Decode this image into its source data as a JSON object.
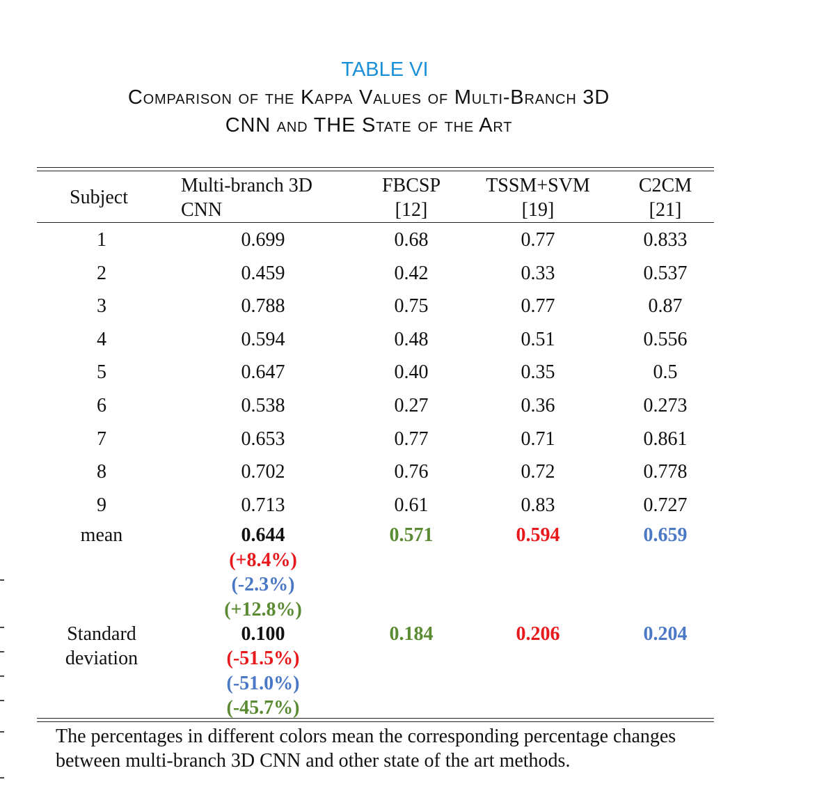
{
  "table": {
    "label": "TABLE VI",
    "caption_line1": "Comparison of the Kappa Values of Multi-Branch 3D",
    "caption_line2": "CNN and THE State of the Art",
    "headers": {
      "subject": "Subject",
      "col1_line1": "Multi-branch 3D",
      "col1_line2": "CNN",
      "col2_line1": "FBCSP",
      "col2_line2": "[12]",
      "col3_line1": "TSSM+SVM",
      "col3_line2": "[19]",
      "col4_line1": "C2CM",
      "col4_line2": "[21]"
    },
    "rows": [
      {
        "subject": "1",
        "v1": "0.699",
        "v2": "0.68",
        "v3": "0.77",
        "v4": "0.833"
      },
      {
        "subject": "2",
        "v1": "0.459",
        "v2": "0.42",
        "v3": "0.33",
        "v4": "0.537"
      },
      {
        "subject": "3",
        "v1": "0.788",
        "v2": "0.75",
        "v3": "0.77",
        "v4": "0.87"
      },
      {
        "subject": "4",
        "v1": "0.594",
        "v2": "0.48",
        "v3": "0.51",
        "v4": "0.556"
      },
      {
        "subject": "5",
        "v1": "0.647",
        "v2": "0.40",
        "v3": "0.35",
        "v4": "0.5"
      },
      {
        "subject": "6",
        "v1": "0.538",
        "v2": "0.27",
        "v3": "0.36",
        "v4": "0.273"
      },
      {
        "subject": "7",
        "v1": "0.653",
        "v2": "0.77",
        "v3": "0.71",
        "v4": "0.861"
      },
      {
        "subject": "8",
        "v1": "0.702",
        "v2": "0.76",
        "v3": "0.72",
        "v4": "0.778"
      },
      {
        "subject": "9",
        "v1": "0.713",
        "v2": "0.61",
        "v3": "0.83",
        "v4": "0.727"
      }
    ],
    "mean": {
      "label": "mean",
      "v1": "0.644",
      "v1_vs_tssm": "(+8.4%)",
      "v1_vs_c2cm": "(-2.3%)",
      "v1_vs_fbcsp": "(+12.8%)",
      "v2": "0.571",
      "v3": "0.594",
      "v4": "0.659"
    },
    "std": {
      "label_line1": "Standard",
      "label_line2": "deviation",
      "v1": "0.100",
      "v1_vs_tssm": "(-51.5%)",
      "v1_vs_c2cm": "(-51.0%)",
      "v1_vs_fbcsp": "(-45.7%)",
      "v2": "0.184",
      "v3": "0.206",
      "v4": "0.204"
    },
    "footnote_line1": "The percentages in different colors mean the corresponding percentage changes",
    "footnote_line2": "between multi-branch 3D CNN and other state of the art methods.",
    "colors": {
      "label": "#1a90d8",
      "red": "#e8191c",
      "blue": "#4a78c4",
      "green": "#5a8a32"
    }
  }
}
